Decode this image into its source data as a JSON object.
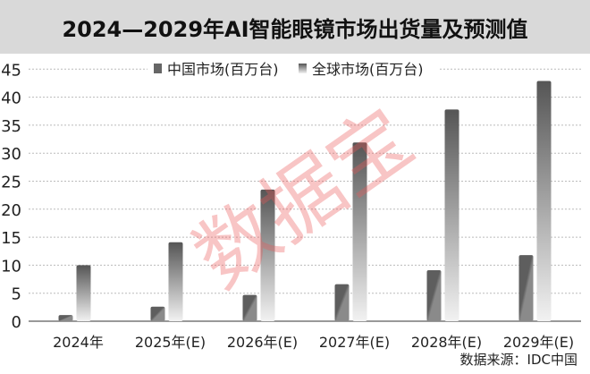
{
  "chart_data": {
    "type": "bar",
    "title": "2024—2029年AI智能眼镜市场出货量及预测值",
    "categories": [
      "2024年",
      "2025年(E)",
      "2026年(E)",
      "2027年(E)",
      "2028年(E)",
      "2029年(E)"
    ],
    "series": [
      {
        "name": "中国市场(百万台)",
        "values": [
          1.1,
          2.6,
          4.7,
          6.6,
          9.1,
          11.8
        ],
        "color": "#6e6e6e"
      },
      {
        "name": "全球市场(百万台)",
        "values": [
          10.0,
          14.1,
          23.5,
          31.9,
          37.8,
          42.9
        ],
        "color": "#5a5a5a"
      }
    ],
    "yticks": [
      0,
      5,
      10,
      15,
      20,
      25,
      30,
      35,
      40,
      45
    ],
    "ylim": [
      0,
      45
    ],
    "grid": true,
    "legend": "top"
  },
  "source": "数据来源：IDC中国",
  "watermark": "数据宝"
}
